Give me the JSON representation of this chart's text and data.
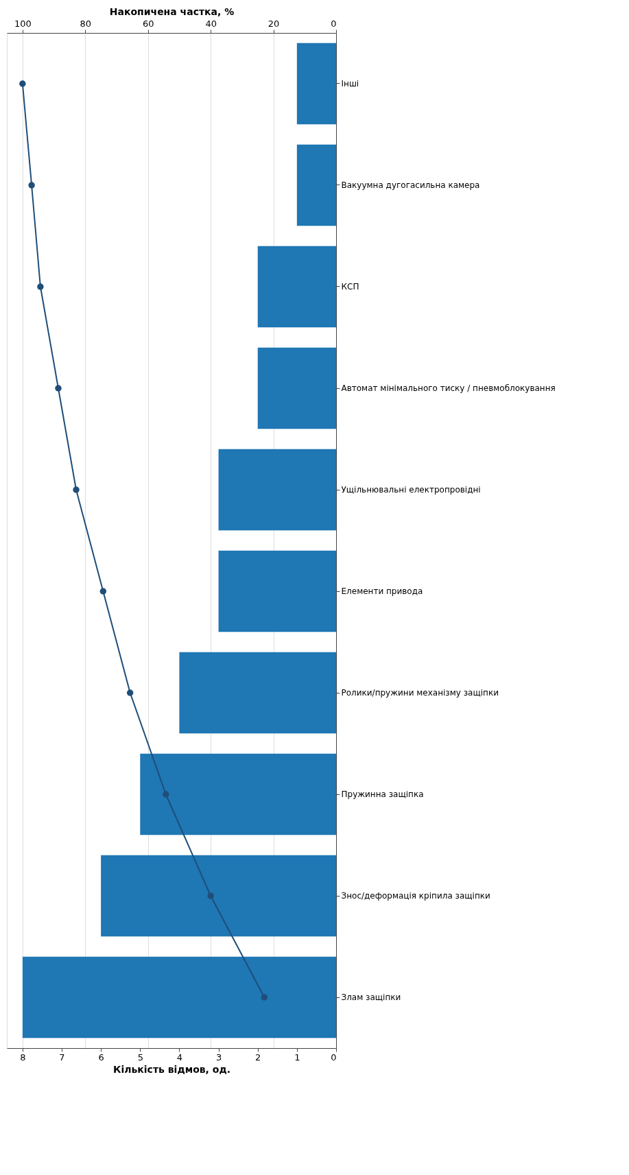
{
  "chart_data": {
    "type": "bar",
    "orientation": "horizontal",
    "xlabel": "Кількість відмов, од.",
    "x2label": "Накопичена частка, %",
    "categories": [
      "Інші",
      "Вакуумна дугогасильна камера",
      "КСП",
      "Автомат мінімального тиску / пневмоблокування",
      "Ущільнювальні електропровідні",
      "Елементи привода",
      "Ролики/пружини механізму защіпки",
      "Пружинна защіпка",
      "Знос/деформація кріпила защіпки",
      "Злам защіпки"
    ],
    "series": [
      {
        "color": "#1f77b4",
        "values": [
          1,
          1,
          2,
          2,
          3,
          3,
          4,
          5,
          6,
          8
        ]
      },
      {
        "type": "line",
        "axis": "x2",
        "color": "#1f4e79",
        "marker": "circle",
        "values": [
          100,
          97.1,
          94.3,
          88.6,
          82.9,
          74.3,
          65.7,
          54.3,
          40.0,
          22.9
        ]
      }
    ],
    "xlim": [
      8.4,
      0
    ],
    "xticks": [
      0,
      1,
      2,
      3,
      4,
      5,
      6,
      7,
      8
    ],
    "x2lim": [
      105,
      0
    ],
    "x2ticks": [
      0,
      20,
      40,
      60,
      80,
      100
    ],
    "grid": "x2"
  }
}
